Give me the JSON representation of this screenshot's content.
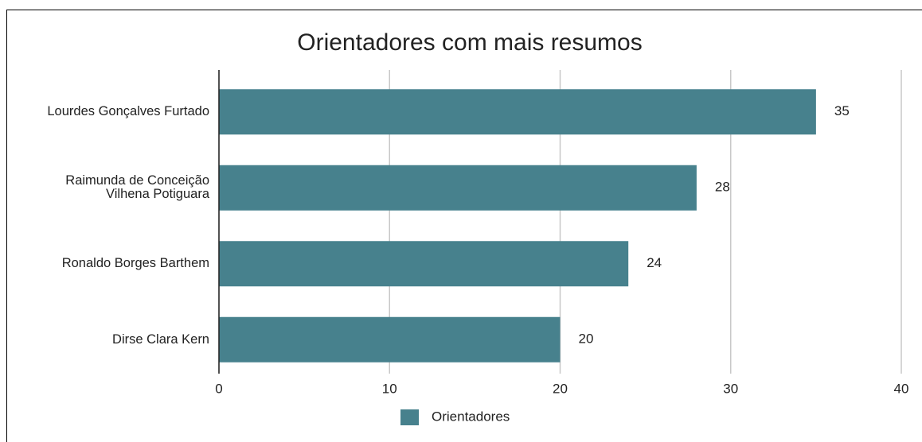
{
  "chart_data": {
    "type": "bar",
    "orientation": "horizontal",
    "title": "Orientadores com mais resumos",
    "categories": [
      "Lourdes Gonçalves Furtado",
      "Raimunda de Conceição Vilhena Potiguara",
      "Ronaldo Borges Barthem",
      "Dirse Clara Kern"
    ],
    "series": [
      {
        "name": "Orientadores",
        "color": "#47818d",
        "values": [
          35,
          28,
          24,
          20
        ]
      }
    ],
    "xlim": [
      0,
      40
    ],
    "xticks": [
      0,
      10,
      20,
      30,
      40
    ],
    "grid": true,
    "legend": "bottom"
  }
}
